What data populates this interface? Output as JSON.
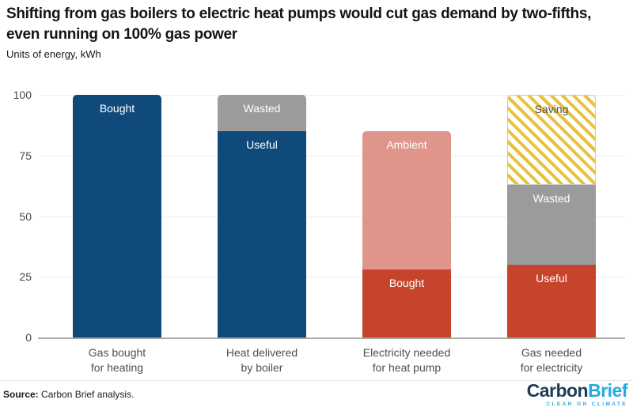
{
  "header": {
    "title": "Shifting from gas boilers to electric heat pumps would cut gas demand by two-fifths, even running on 100% gas power",
    "subtitle": "Units of energy, kWh"
  },
  "chart_data": {
    "type": "bar",
    "stacked": true,
    "title": "Shifting from gas boilers to electric heat pumps would cut gas demand by two-fifths, even running on 100% gas power",
    "subtitle": "Units of energy, kWh",
    "xlabel": "",
    "ylabel": "Units of energy, kWh",
    "ylim": [
      0,
      100
    ],
    "yticks": [
      0,
      25,
      50,
      75,
      100
    ],
    "grid": true,
    "legend_position": "none",
    "categories": [
      [
        "Gas bought",
        "for heating"
      ],
      [
        "Heat delivered",
        "by boiler"
      ],
      [
        "Electricity needed",
        "for heat pump"
      ],
      [
        "Gas needed",
        "for electricity"
      ]
    ],
    "bars": [
      {
        "segments": [
          {
            "label": "Bought",
            "value": 100,
            "color": "#0f4a7b",
            "text_color": "#ffffff"
          }
        ]
      },
      {
        "segments": [
          {
            "label": "Useful",
            "value": 85,
            "color": "#0f4a7b",
            "text_color": "#ffffff"
          },
          {
            "label": "Wasted",
            "value": 15,
            "color": "#9b9b9b",
            "text_color": "#ffffff"
          }
        ]
      },
      {
        "segments": [
          {
            "label": "Bought",
            "value": 28,
            "color": "#c5442b",
            "text_color": "#ffffff"
          },
          {
            "label": "Ambient",
            "value": 57,
            "color": "#e0958a",
            "text_color": "#ffffff"
          }
        ]
      },
      {
        "segments": [
          {
            "label": "Useful",
            "value": 30,
            "color": "#c5442b",
            "text_color": "#ffffff"
          },
          {
            "label": "Wasted",
            "value": 33,
            "color": "#9b9b9b",
            "text_color": "#ffffff"
          },
          {
            "label": "Saving",
            "value": 37,
            "color": "#e8c23c",
            "pattern": "diagonal-hatch",
            "text_color": "#4d4d4d"
          }
        ]
      }
    ]
  },
  "colors": {
    "dark_blue": "#0f4a7b",
    "red": "#c5442b",
    "salmon": "#e0958a",
    "gray": "#9b9b9b",
    "hatch_yellow": "#e8c23c",
    "gridline": "#ededed",
    "axis_line": "#a9a9a9",
    "logo_navy": "#1d3c5a",
    "logo_blue": "#29a8df"
  },
  "footer": {
    "source_label": "Source:",
    "source_text": " Carbon Brief analysis.",
    "logo": {
      "part1": "Carbon",
      "part2": "Brief",
      "tagline": "CLEAR ON CLIMATE"
    }
  }
}
